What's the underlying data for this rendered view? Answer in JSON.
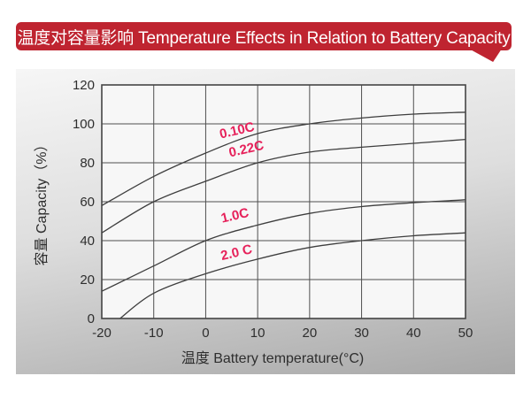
{
  "banner": {
    "title": "温度对容量影响 Temperature Effects in Relation to Battery Capacity",
    "background_color": "#bf2430",
    "text_color": "#ffffff"
  },
  "chart_data": {
    "type": "line",
    "title": "温度对容量影响 Temperature Effects in Relation to Battery Capacity",
    "xlabel": "温度  Battery temperature(°C)",
    "ylabel": "容量 Capacity（%）",
    "xlim": [
      -20,
      50
    ],
    "ylim": [
      0,
      120
    ],
    "xticks": [
      -20,
      -10,
      0,
      10,
      20,
      30,
      40,
      50
    ],
    "yticks": [
      0,
      20,
      40,
      60,
      80,
      100,
      120
    ],
    "grid": true,
    "legend_position": "inline-curve-labels",
    "line_color": "#3e3e3e",
    "grid_color": "#4f4f4f",
    "label_color": "#e6215a",
    "series": [
      {
        "name": "0.10C",
        "x": [
          -20,
          -10,
          0,
          10,
          20,
          30,
          40,
          50
        ],
        "values": [
          58,
          73,
          85,
          95,
          100,
          103,
          105,
          106
        ],
        "label": {
          "x": 6.2,
          "y": 94.5,
          "angle": -13
        }
      },
      {
        "name": "0.22C",
        "x": [
          -20,
          -10,
          0,
          10,
          20,
          30,
          40,
          50
        ],
        "values": [
          44,
          60,
          70.5,
          80,
          85.5,
          88,
          90,
          92
        ],
        "label": {
          "x": 8.0,
          "y": 85.0,
          "angle": -13
        }
      },
      {
        "name": "1.0C",
        "x": [
          -20,
          -10,
          0,
          10,
          20,
          30,
          40,
          50
        ],
        "values": [
          14,
          27,
          40,
          48,
          54,
          57.5,
          59.5,
          61
        ],
        "label": {
          "x": 5.8,
          "y": 50.8,
          "angle": -13
        }
      },
      {
        "name": "2.0 C",
        "x": [
          -16.5,
          -10,
          0,
          10,
          20,
          30,
          40,
          50
        ],
        "values": [
          0,
          13,
          23,
          30.5,
          36.5,
          40,
          42.5,
          44
        ],
        "label": {
          "x": 6.1,
          "y": 31.8,
          "angle": -13
        }
      }
    ]
  }
}
